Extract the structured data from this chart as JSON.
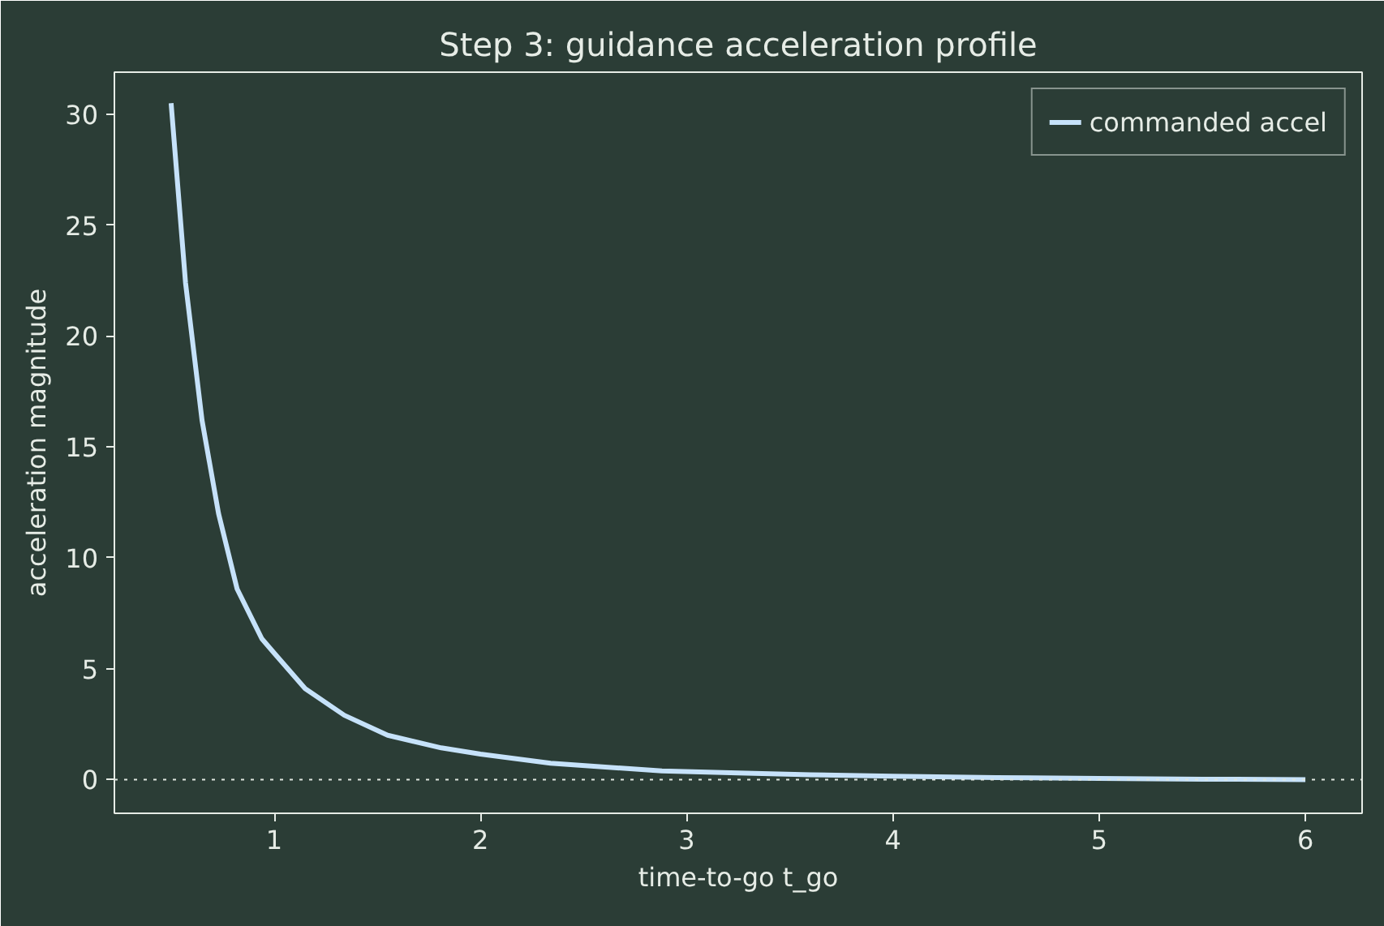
{
  "chart_data": {
    "type": "line",
    "title": "Step 3: guidance acceleration profile",
    "xlabel": "time-to-go t_go",
    "ylabel": "acceleration magnitude",
    "series": [
      {
        "name": "commanded accel",
        "color": "#c6e2fa",
        "x": [
          0.5,
          0.57,
          0.65,
          0.73,
          0.82,
          0.94,
          1.0,
          1.15,
          1.34,
          1.55,
          1.81,
          2.0,
          2.34,
          2.88,
          3.25,
          3.6,
          4.0,
          4.5,
          5.0,
          5.5,
          6.0
        ],
        "values": [
          30.5,
          22.4,
          16.2,
          12.0,
          8.6,
          6.35,
          5.7,
          4.1,
          2.9,
          2.0,
          1.43,
          1.15,
          0.74,
          0.39,
          0.3,
          0.22,
          0.15,
          0.09,
          0.05,
          0.02,
          0.0
        ]
      }
    ],
    "xlim": [
      0.225,
      6.275
    ],
    "ylim": [
      -1.52,
      31.9
    ],
    "xticks": [
      1,
      2,
      3,
      4,
      5,
      6
    ],
    "yticks": [
      0,
      5,
      10,
      15,
      20,
      25,
      30
    ],
    "ref_lines": [
      {
        "axis": "y",
        "value": 0,
        "color": "#dfe6df",
        "line_style": "dotted"
      }
    ],
    "grid": false,
    "legend": "top right",
    "line_style": "solid",
    "marker": "none"
  }
}
